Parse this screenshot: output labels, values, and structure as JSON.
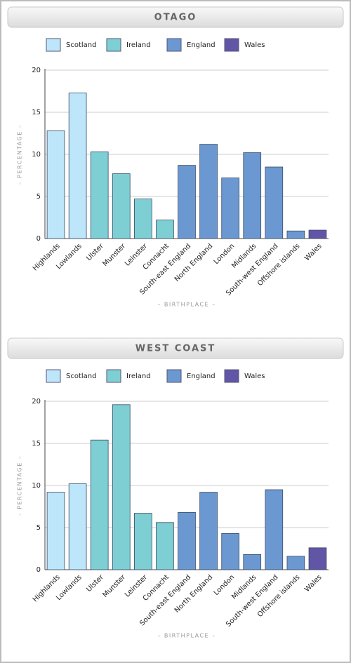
{
  "chart_data": [
    {
      "type": "bar",
      "title": "OTAGO",
      "x_label": "– BIRTHPLACE –",
      "y_label": "– PERCENTAGE –",
      "categories": [
        "Highlands",
        "Lowlands",
        "Ulster",
        "Munster",
        "Leinster",
        "Connacht",
        "South-east England",
        "North England",
        "London",
        "Midlands",
        "South-west England",
        "Offshore islands",
        "Wales"
      ],
      "series": [
        {
          "name": "Scotland",
          "color": "#bde6fa",
          "values": [
            12.8,
            17.3,
            null,
            null,
            null,
            null,
            null,
            null,
            null,
            null,
            null,
            null,
            null
          ]
        },
        {
          "name": "Ireland",
          "color": "#7ecfd4",
          "values": [
            null,
            null,
            10.3,
            7.7,
            4.7,
            2.2,
            null,
            null,
            null,
            null,
            null,
            null,
            null
          ]
        },
        {
          "name": "England",
          "color": "#6b98d0",
          "values": [
            null,
            null,
            null,
            null,
            null,
            null,
            8.7,
            11.2,
            7.2,
            10.2,
            8.5,
            0.9,
            null
          ]
        },
        {
          "name": "Wales",
          "color": "#6155a5",
          "values": [
            null,
            null,
            null,
            null,
            null,
            null,
            null,
            null,
            null,
            null,
            null,
            null,
            1.0
          ]
        }
      ],
      "ylim": [
        0,
        20
      ],
      "yticks": [
        0,
        5,
        10,
        15,
        20
      ],
      "grid": true
    },
    {
      "type": "bar",
      "title": "WEST COAST",
      "x_label": "– BIRTHPLACE –",
      "y_label": "– PERCENTAGE –",
      "categories": [
        "Highlands",
        "Lowlands",
        "Ulster",
        "Munster",
        "Leinster",
        "Connacht",
        "South-east England",
        "North England",
        "London",
        "Midlands",
        "South-west England",
        "Offshore islands",
        "Wales"
      ],
      "series": [
        {
          "name": "Scotland",
          "color": "#bde6fa",
          "values": [
            9.2,
            10.2,
            null,
            null,
            null,
            null,
            null,
            null,
            null,
            null,
            null,
            null,
            null
          ]
        },
        {
          "name": "Ireland",
          "color": "#7ecfd4",
          "values": [
            null,
            null,
            15.4,
            19.6,
            6.7,
            5.6,
            null,
            null,
            null,
            null,
            null,
            null,
            null
          ]
        },
        {
          "name": "England",
          "color": "#6b98d0",
          "values": [
            null,
            null,
            null,
            null,
            null,
            null,
            6.8,
            9.2,
            4.3,
            1.8,
            9.5,
            1.6,
            null
          ]
        },
        {
          "name": "Wales",
          "color": "#6155a5",
          "values": [
            null,
            null,
            null,
            null,
            null,
            null,
            null,
            null,
            null,
            null,
            null,
            null,
            2.6
          ]
        }
      ],
      "ylim": [
        0,
        20
      ],
      "yticks": [
        0,
        5,
        10,
        15,
        20
      ],
      "grid": true
    }
  ]
}
